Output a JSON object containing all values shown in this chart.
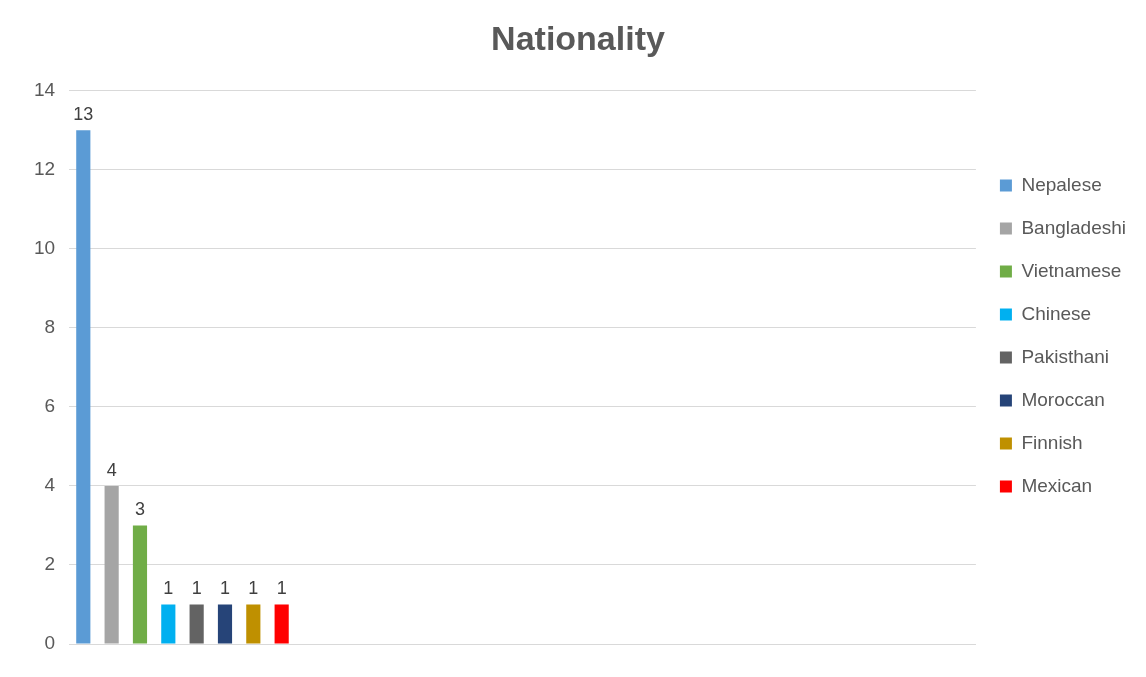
{
  "chart_data": {
    "type": "bar",
    "title": "Nationality",
    "categories": [
      null,
      null,
      null,
      null
    ],
    "series": [
      {
        "name": "Nepalese",
        "color": "#5b9bd5",
        "values": [
          13,
          null,
          null,
          null
        ]
      },
      {
        "name": "Bangladeshi",
        "color": "#a5a5a5",
        "values": [
          4,
          null,
          null,
          null
        ]
      },
      {
        "name": "Vietnamese",
        "color": "#70ad47",
        "values": [
          3,
          null,
          null,
          null
        ]
      },
      {
        "name": "Chinese",
        "color": "#00b0f0",
        "values": [
          1,
          null,
          null,
          null
        ]
      },
      {
        "name": "Pakisthani",
        "color": "#636363",
        "values": [
          1,
          null,
          null,
          null
        ]
      },
      {
        "name": "Moroccan",
        "color": "#264478",
        "values": [
          1,
          null,
          null,
          null
        ]
      },
      {
        "name": "Finnish",
        "color": "#bf9000",
        "values": [
          1,
          null,
          null,
          null
        ]
      },
      {
        "name": "Mexican",
        "color": "#ff0000",
        "values": [
          1,
          null,
          null,
          null
        ]
      }
    ],
    "ylim": [
      0,
      14
    ],
    "yticks": [
      0,
      2,
      4,
      6,
      8,
      10,
      12,
      14
    ],
    "grid": "y",
    "legend": "right",
    "data_labels": true
  }
}
